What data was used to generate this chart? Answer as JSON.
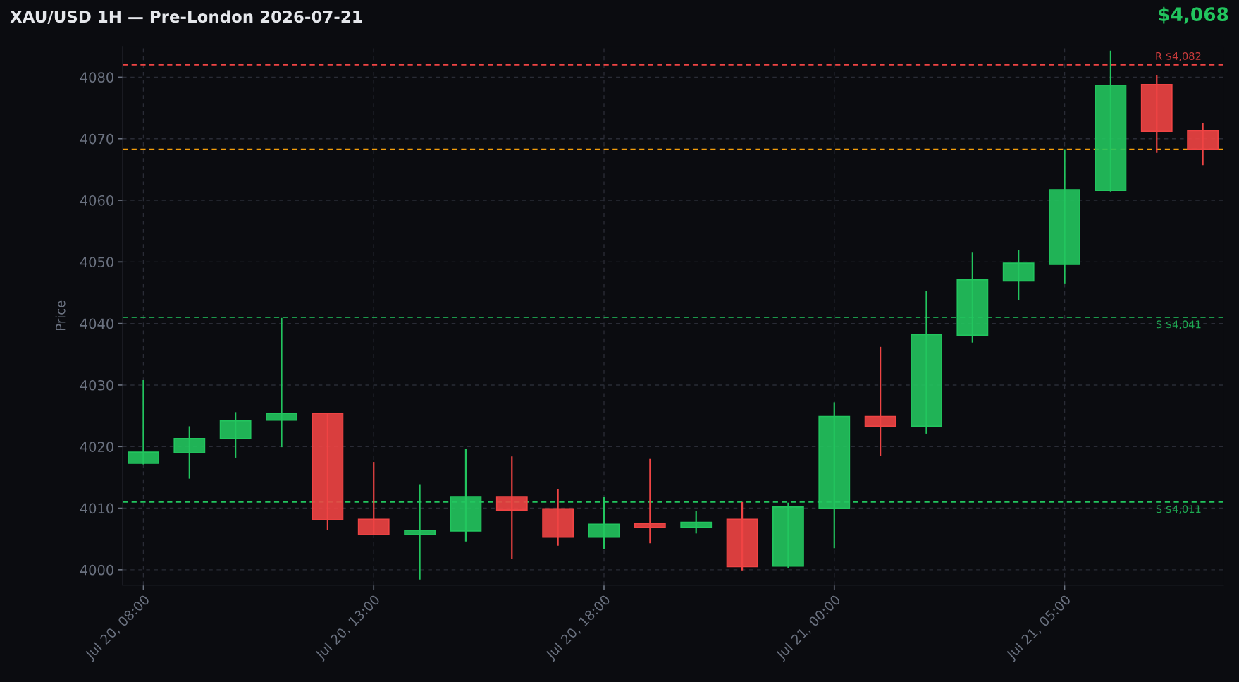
{
  "chart_data": {
    "type": "candlestick",
    "title": "XAU/USD 1H — Pre-London 2026-07-21",
    "ylabel": "Price",
    "categories": [
      "Jul 20, 08:00",
      null,
      null,
      null,
      null,
      "Jul 20, 13:00",
      null,
      null,
      null,
      null,
      "Jul 20, 18:00",
      null,
      null,
      null,
      null,
      "Jul 21, 00:00",
      null,
      null,
      null,
      null,
      "Jul 21, 05:00",
      null,
      null,
      null
    ],
    "ohlc": [
      [
        4017.3,
        4030.8,
        4017.1,
        4019.1
      ],
      [
        4019.0,
        4023.3,
        4014.8,
        4021.3
      ],
      [
        4021.3,
        4025.6,
        4018.2,
        4024.2
      ],
      [
        4024.3,
        4040.9,
        4019.9,
        4025.4
      ],
      [
        4025.4,
        4025.5,
        4006.5,
        4008.1
      ],
      [
        4008.2,
        4017.5,
        4005.6,
        4005.7
      ],
      [
        4005.7,
        4013.9,
        3998.4,
        4006.4
      ],
      [
        4006.3,
        4019.6,
        4004.6,
        4011.9
      ],
      [
        4011.9,
        4018.4,
        4001.7,
        4009.7
      ],
      [
        4009.9,
        4013.1,
        4003.9,
        4005.3
      ],
      [
        4005.3,
        4011.9,
        4003.4,
        4007.4
      ],
      [
        4007.5,
        4018.0,
        4004.3,
        4006.9
      ],
      [
        4006.9,
        4009.5,
        4005.9,
        4007.7
      ],
      [
        4008.2,
        4011.0,
        3999.9,
        4000.5
      ],
      [
        4000.6,
        4010.9,
        4000.3,
        4010.2
      ],
      [
        4010.0,
        4027.2,
        4003.5,
        4024.9
      ],
      [
        4024.9,
        4036.2,
        4018.5,
        4023.3
      ],
      [
        4023.3,
        4045.3,
        4022.1,
        4038.2
      ],
      [
        4038.1,
        4051.5,
        4036.9,
        4047.1
      ],
      [
        4046.9,
        4051.9,
        4043.8,
        4049.8
      ],
      [
        4049.6,
        4068.3,
        4046.5,
        4061.7
      ],
      [
        4061.6,
        4084.3,
        4061.4,
        4078.7
      ],
      [
        4078.8,
        4080.3,
        4067.7,
        4071.2
      ],
      [
        4071.3,
        4072.6,
        4065.7,
        4068.3
      ]
    ],
    "colors": [
      "#22c55e",
      "#22c55e",
      "#22c55e",
      "#22c55e",
      "#ef4444",
      "#ef4444",
      "#22c55e",
      "#22c55e",
      "#ef4444",
      "#ef4444",
      "#22c55e",
      "#ef4444",
      "#22c55e",
      "#ef4444",
      "#22c55e",
      "#22c55e",
      "#ef4444",
      "#22c55e",
      "#22c55e",
      "#22c55e",
      "#22c55e",
      "#22c55e",
      "#ef4444",
      "#ef4444"
    ],
    "ylim": [
      3997.5,
      4085
    ],
    "yticks": [
      4000,
      4010,
      4020,
      4030,
      4040,
      4050,
      4060,
      4070,
      4080
    ],
    "grid": true,
    "ref_lines": [
      {
        "axis": "y",
        "value": 4082,
        "label": "R $4,082",
        "color": "#ef4444",
        "line_style": "dashed"
      },
      {
        "axis": "y",
        "value": 4068.3,
        "color": "#f59e0b",
        "line_style": "dashed"
      },
      {
        "axis": "y",
        "value": 4041,
        "label": "S $4,041",
        "color": "#22c55e",
        "line_style": "dashed"
      },
      {
        "axis": "y",
        "value": 4011,
        "label": "S $4,011",
        "color": "#22c55e",
        "line_style": "dashed"
      }
    ],
    "annotations": [
      "$4,068"
    ]
  }
}
